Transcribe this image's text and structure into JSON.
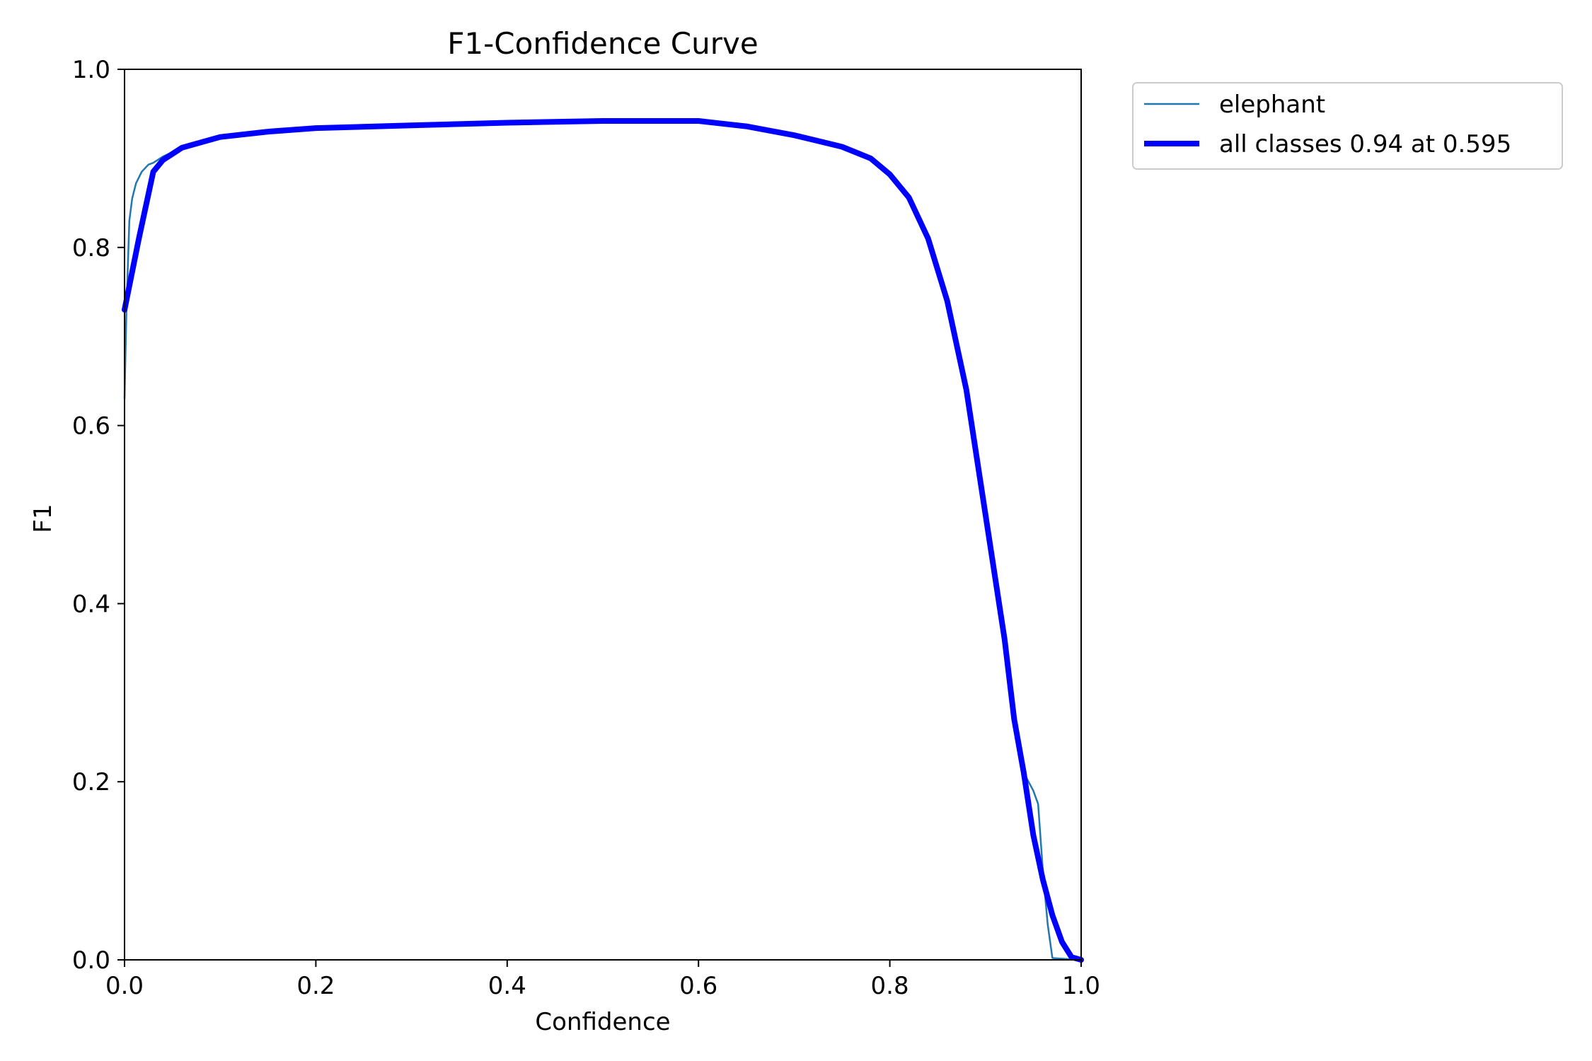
{
  "chart_data": {
    "type": "line",
    "title": "F1-Confidence Curve",
    "xlabel": "Confidence",
    "ylabel": "F1",
    "xlim": [
      0,
      1
    ],
    "ylim": [
      0,
      1
    ],
    "xticks": [
      "0.0",
      "0.2",
      "0.4",
      "0.6",
      "0.8",
      "1.0"
    ],
    "yticks": [
      "0.0",
      "0.2",
      "0.4",
      "0.6",
      "0.8",
      "1.0"
    ],
    "grid": false,
    "legend_position": "outside-top-right",
    "series": [
      {
        "name": "elephant",
        "color": "#1f77b4",
        "style": "thin",
        "x": [
          0.0,
          0.002,
          0.005,
          0.008,
          0.012,
          0.018,
          0.025,
          0.03,
          0.04,
          0.06,
          0.1,
          0.15,
          0.2,
          0.3,
          0.4,
          0.5,
          0.6,
          0.65,
          0.7,
          0.75,
          0.78,
          0.8,
          0.82,
          0.84,
          0.86,
          0.88,
          0.9,
          0.92,
          0.93,
          0.94,
          0.95,
          0.955,
          0.96,
          0.965,
          0.97,
          1.0
        ],
        "y": [
          0.63,
          0.73,
          0.83,
          0.855,
          0.872,
          0.885,
          0.893,
          0.895,
          0.902,
          0.912,
          0.924,
          0.93,
          0.934,
          0.937,
          0.94,
          0.942,
          0.942,
          0.936,
          0.926,
          0.913,
          0.9,
          0.882,
          0.856,
          0.81,
          0.74,
          0.64,
          0.5,
          0.36,
          0.27,
          0.21,
          0.19,
          0.175,
          0.1,
          0.04,
          0.002,
          0.0
        ]
      },
      {
        "name": "all classes 0.94 at 0.595",
        "color": "#0000ff",
        "style": "thick",
        "x": [
          0.0,
          0.015,
          0.03,
          0.04,
          0.06,
          0.1,
          0.15,
          0.2,
          0.3,
          0.4,
          0.5,
          0.6,
          0.65,
          0.7,
          0.75,
          0.78,
          0.8,
          0.82,
          0.84,
          0.86,
          0.88,
          0.9,
          0.92,
          0.93,
          0.94,
          0.95,
          0.96,
          0.97,
          0.98,
          0.99,
          1.0
        ],
        "y": [
          0.73,
          0.81,
          0.885,
          0.898,
          0.912,
          0.924,
          0.93,
          0.934,
          0.937,
          0.94,
          0.942,
          0.942,
          0.936,
          0.926,
          0.913,
          0.9,
          0.882,
          0.856,
          0.81,
          0.74,
          0.64,
          0.5,
          0.36,
          0.27,
          0.21,
          0.14,
          0.09,
          0.05,
          0.02,
          0.003,
          0.0
        ]
      }
    ]
  }
}
